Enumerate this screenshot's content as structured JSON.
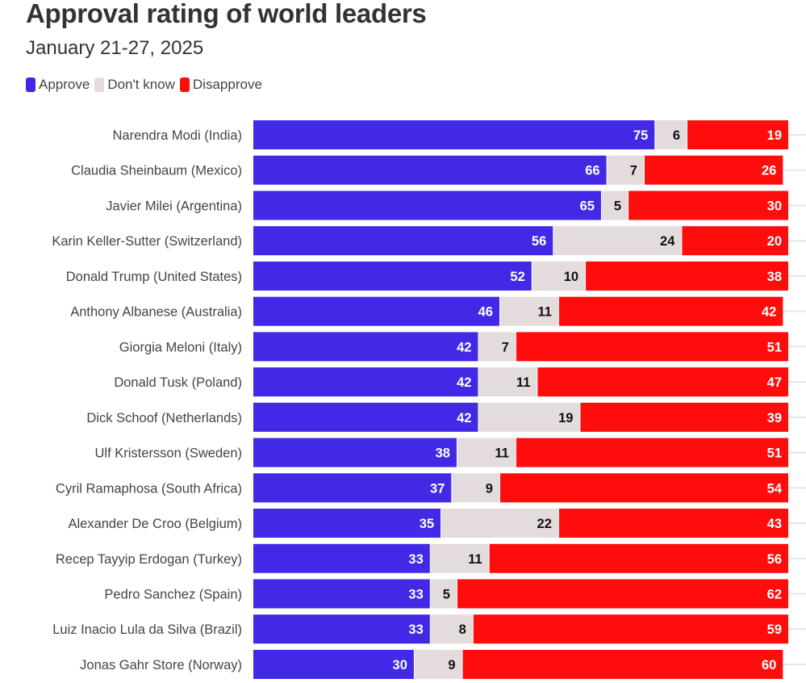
{
  "chart_data": {
    "type": "bar",
    "orientation": "horizontal",
    "stacked": true,
    "title": "Approval rating of world leaders",
    "subtitle": "January 21-27, 2025",
    "xlabel": "",
    "ylabel": "",
    "xlim": [
      0,
      100
    ],
    "legend": {
      "placement": "top-left",
      "entries": [
        "Approve",
        "Don't know",
        "Disapprove"
      ]
    },
    "colors": {
      "Approve": "#4229e6",
      "Don't know": "#e4dcdc",
      "Disapprove": "#ff0c0c"
    },
    "categories": [
      "Narendra Modi (India)",
      "Claudia Sheinbaum (Mexico)",
      "Javier Milei (Argentina)",
      "Karin Keller-Sutter (Switzerland)",
      "Donald Trump (United States)",
      "Anthony Albanese (Australia)",
      "Giorgia Meloni (Italy)",
      "Donald Tusk (Poland)",
      "Dick Schoof (Netherlands)",
      "Ulf Kristersson (Sweden)",
      "Cyril Ramaphosa (South Africa)",
      "Alexander De Croo (Belgium)",
      "Recep Tayyip Erdogan (Turkey)",
      "Pedro Sanchez (Spain)",
      "Luiz Inacio Lula da Silva (Brazil)",
      "Jonas Gahr Store (Norway)"
    ],
    "series": [
      {
        "name": "Approve",
        "values": [
          75,
          66,
          65,
          56,
          52,
          46,
          42,
          42,
          42,
          38,
          37,
          35,
          33,
          33,
          33,
          30
        ]
      },
      {
        "name": "Don't know",
        "values": [
          6,
          7,
          5,
          24,
          10,
          11,
          7,
          11,
          19,
          11,
          9,
          22,
          11,
          5,
          8,
          9
        ]
      },
      {
        "name": "Disapprove",
        "values": [
          19,
          26,
          30,
          20,
          38,
          42,
          51,
          47,
          39,
          51,
          54,
          43,
          56,
          62,
          59,
          60
        ]
      }
    ]
  }
}
